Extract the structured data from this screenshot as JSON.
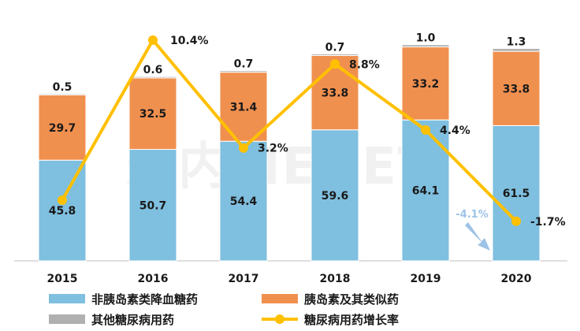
{
  "watermark": "米内MENET",
  "chart_data": {
    "type": "bar",
    "stacked": true,
    "categories": [
      "2015",
      "2016",
      "2017",
      "2018",
      "2019",
      "2020"
    ],
    "series": [
      {
        "name": "非胰岛素类降血糖药",
        "values": [
          45.8,
          50.7,
          54.4,
          59.6,
          64.1,
          61.5
        ],
        "color": "#7fbfdf"
      },
      {
        "name": "胰岛素及其类似药",
        "values": [
          29.7,
          32.5,
          31.4,
          33.8,
          33.2,
          33.8
        ],
        "color": "#f0904f"
      },
      {
        "name": "其他糖尿病用药",
        "values": [
          0.5,
          0.6,
          0.7,
          0.7,
          1.0,
          1.3
        ],
        "color": "#b0b0b0"
      }
    ],
    "line": {
      "name": "糖尿病用药增长率",
      "values": [
        null,
        10.4,
        3.2,
        8.8,
        4.4,
        -1.7
      ],
      "labels": [
        "",
        "10.4%",
        "3.2%",
        "8.8%",
        "4.4%",
        "-1.7%"
      ],
      "color": "#ffc000"
    },
    "growth_2015_label": "",
    "annotation": "-4.1%",
    "annotation_color": "#9dc3e6",
    "ylim": [
      0,
      100
    ],
    "grid": false,
    "legend_position": "bottom"
  }
}
